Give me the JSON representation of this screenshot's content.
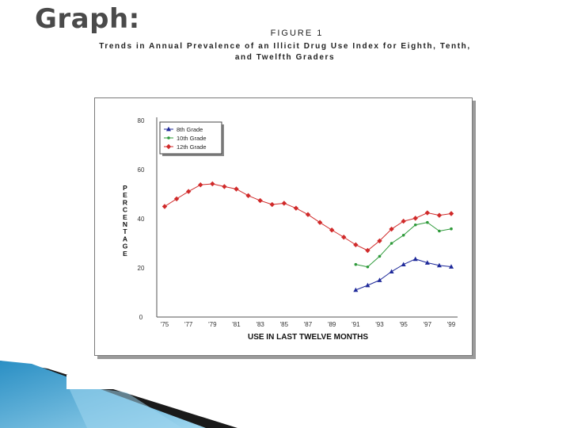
{
  "slide": {
    "title": "Graph:"
  },
  "figure": {
    "label": "FIGURE 1",
    "caption_line1": "Trends in Annual Prevalence of an Illicit Drug Use Index for Eighth, Tenth,",
    "caption_line2": "and Twelfth Graders"
  },
  "colors": {
    "grade8": "#1f2a9a",
    "grade10": "#2e9a3a",
    "grade12": "#d02a2a",
    "footer_blue": "#2a8fc4",
    "footer_light": "#9fd6ee"
  },
  "chart_data": {
    "type": "line",
    "xlabel": "USE IN LAST TWELVE MONTHS",
    "ylabel": "PERCENTAGE",
    "ylim": [
      0,
      80
    ],
    "yticks": [
      "0",
      "20",
      "40",
      "60",
      "80"
    ],
    "xlim": [
      1975,
      1999
    ],
    "xticks": [
      {
        "year": 1975,
        "label": "'75"
      },
      {
        "year": 1977,
        "label": "'77"
      },
      {
        "year": 1979,
        "label": "'79"
      },
      {
        "year": 1981,
        "label": "'81"
      },
      {
        "year": 1983,
        "label": "'83"
      },
      {
        "year": 1985,
        "label": "'85"
      },
      {
        "year": 1987,
        "label": "'87"
      },
      {
        "year": 1989,
        "label": "'89"
      },
      {
        "year": 1991,
        "label": "'91"
      },
      {
        "year": 1993,
        "label": "'93"
      },
      {
        "year": 1995,
        "label": "'95"
      },
      {
        "year": 1997,
        "label": "'97"
      },
      {
        "year": 1999,
        "label": "'99"
      }
    ],
    "legend_position": "top-left",
    "grid": false,
    "series": [
      {
        "name": "8th Grade",
        "marker": "triangle",
        "x": [
          1991,
          1992,
          1993,
          1994,
          1995,
          1996,
          1997,
          1998,
          1999
        ],
        "values": [
          11,
          12.9,
          15,
          18.5,
          21.4,
          23.6,
          22.1,
          21,
          20.5
        ]
      },
      {
        "name": "10th Grade",
        "marker": "dot",
        "x": [
          1991,
          1992,
          1993,
          1994,
          1995,
          1996,
          1997,
          1998,
          1999
        ],
        "values": [
          21.4,
          20.4,
          24.7,
          30,
          33.3,
          37.5,
          38.5,
          35,
          35.9
        ]
      },
      {
        "name": "12th Grade",
        "marker": "diamond",
        "x": [
          1975,
          1976,
          1977,
          1978,
          1979,
          1980,
          1981,
          1982,
          1983,
          1984,
          1985,
          1986,
          1987,
          1988,
          1989,
          1990,
          1991,
          1992,
          1993,
          1994,
          1995,
          1996,
          1997,
          1998,
          1999
        ],
        "values": [
          45,
          48.1,
          51.1,
          53.8,
          54.2,
          53.1,
          52.1,
          49.4,
          47.4,
          45.8,
          46.3,
          44.3,
          41.7,
          38.5,
          35.4,
          32.5,
          29.4,
          27.1,
          31,
          35.8,
          39,
          40.2,
          42.4,
          41.4,
          42.1
        ]
      }
    ]
  }
}
